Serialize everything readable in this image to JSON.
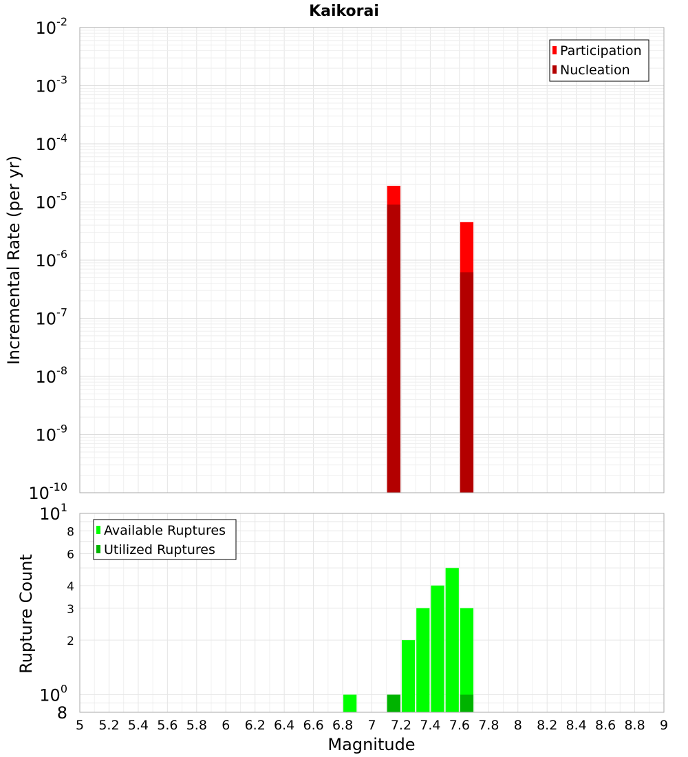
{
  "chart_data": [
    {
      "type": "bar",
      "title": "Kaikorai",
      "xlabel": "",
      "ylabel": "Incremental Rate (per yr)",
      "y_scale": "log",
      "ylim": [
        1e-10,
        0.01
      ],
      "xlim": [
        5,
        9
      ],
      "y_tick_labels": [
        {
          "base": "10",
          "exp": "-10",
          "value": 1e-10
        },
        {
          "base": "10",
          "exp": "-9",
          "value": 1e-09
        },
        {
          "base": "10",
          "exp": "-8",
          "value": 1e-08
        },
        {
          "base": "10",
          "exp": "-7",
          "value": 1e-07
        },
        {
          "base": "10",
          "exp": "-6",
          "value": 1e-06
        },
        {
          "base": "10",
          "exp": "-5",
          "value": 1e-05
        },
        {
          "base": "10",
          "exp": "-4",
          "value": 0.0001
        },
        {
          "base": "10",
          "exp": "-3",
          "value": 0.001
        },
        {
          "base": "10",
          "exp": "-2",
          "value": 0.01
        }
      ],
      "grid": true,
      "legend_position": "top-right",
      "bin_width": 0.1,
      "series": [
        {
          "name": "Participation",
          "color": "#ff0000",
          "x": [
            7.15,
            7.65
          ],
          "values": [
            1.9e-05,
            4.5e-06
          ]
        },
        {
          "name": "Nucleation",
          "color": "#b30000",
          "x": [
            7.15,
            7.65
          ],
          "values": [
            9e-06,
            6.2e-07
          ]
        }
      ]
    },
    {
      "type": "bar",
      "title": "",
      "xlabel": "Magnitude",
      "ylabel": "Rupture Count",
      "y_scale": "log",
      "ylim": [
        0.8,
        10
      ],
      "xlim": [
        5,
        9
      ],
      "y_tick_labels": [
        {
          "base": "8",
          "exp": "",
          "value": 0.8
        },
        {
          "base": "10",
          "exp": "0",
          "value": 1
        },
        {
          "base": "2",
          "exp": "",
          "value": 2
        },
        {
          "base": "3",
          "exp": "",
          "value": 3
        },
        {
          "base": "4",
          "exp": "",
          "value": 4
        },
        {
          "base": "6",
          "exp": "",
          "value": 6
        },
        {
          "base": "8",
          "exp": "",
          "value": 8
        },
        {
          "base": "10",
          "exp": "1",
          "value": 10
        }
      ],
      "x_tick_labels": [
        "5",
        "5.2",
        "5.4",
        "5.6",
        "5.8",
        "6",
        "6.2",
        "6.4",
        "6.6",
        "6.8",
        "7",
        "7.2",
        "7.4",
        "7.6",
        "7.8",
        "8",
        "8.2",
        "8.4",
        "8.6",
        "8.8",
        "9"
      ],
      "grid": true,
      "legend_position": "top-left",
      "bin_width": 0.1,
      "series": [
        {
          "name": "Available Ruptures",
          "color": "#00ff00",
          "x": [
            6.85,
            7.15,
            7.25,
            7.35,
            7.45,
            7.55,
            7.65
          ],
          "values": [
            1,
            1,
            2,
            3,
            4,
            5,
            3
          ]
        },
        {
          "name": "Utilized Ruptures",
          "color": "#00b300",
          "x": [
            7.15,
            7.65
          ],
          "values": [
            1,
            1
          ]
        }
      ]
    }
  ]
}
